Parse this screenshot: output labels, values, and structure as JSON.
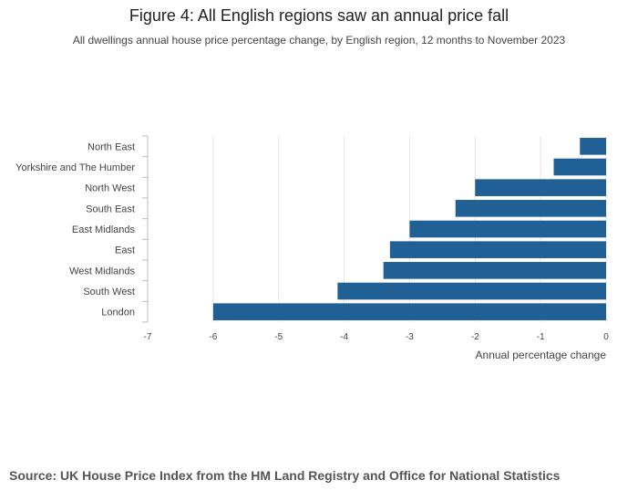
{
  "chart_data": {
    "type": "bar",
    "orientation": "horizontal",
    "title": "Figure 4: All English regions saw an annual price fall",
    "subtitle": "All dwellings annual house price percentage change, by English region, 12 months to November 2023",
    "categories": [
      "North East",
      "Yorkshire and The Humber",
      "North West",
      "South East",
      "East Midlands",
      "East",
      "West Midlands",
      "South West",
      "London"
    ],
    "values": [
      -0.4,
      -0.8,
      -2.0,
      -2.3,
      -3.0,
      -3.3,
      -3.4,
      -4.1,
      -6.0
    ],
    "xlabel": "Annual percentage change",
    "ylabel": "",
    "xlim": [
      -7,
      0
    ],
    "xticks": [
      "-7",
      "-6",
      "-5",
      "-4",
      "-3",
      "-2",
      "-1",
      "0"
    ],
    "grid": true,
    "legend": "none"
  },
  "colors": {
    "bar": "#206095",
    "grid": "#e4e4e4",
    "axis": "#bbbbbb",
    "text": "#444444"
  },
  "source": "Source: UK House Price Index from the HM Land Registry and Office for National Statistics"
}
